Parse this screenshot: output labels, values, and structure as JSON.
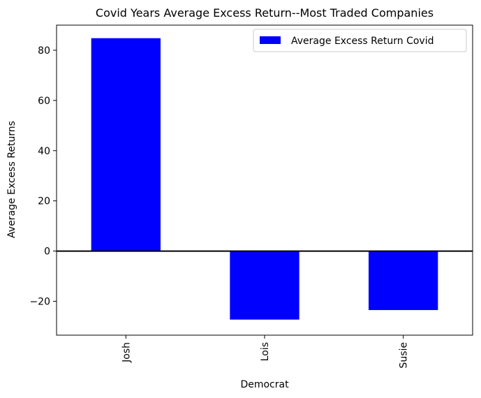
{
  "chart_data": {
    "type": "bar",
    "title": "Covid Years Average Excess Return--Most Traded Companies",
    "xlabel": "Democrat",
    "ylabel": "Average Excess Returns",
    "categories": [
      "Josh",
      "Lois",
      "Susie"
    ],
    "series": [
      {
        "name": "Average Excess Return Covid",
        "values": [
          84.8,
          -27.3,
          -23.5
        ],
        "color": "#0000ff"
      }
    ],
    "ylim": [
      -33.5,
      90
    ],
    "yticks": [
      -20,
      0,
      20,
      40,
      60,
      80
    ],
    "ytick_labels": [
      "−20",
      "0",
      "20",
      "40",
      "60",
      "80"
    ],
    "zero_line": true,
    "grid": false,
    "legend_position": "top-right"
  }
}
